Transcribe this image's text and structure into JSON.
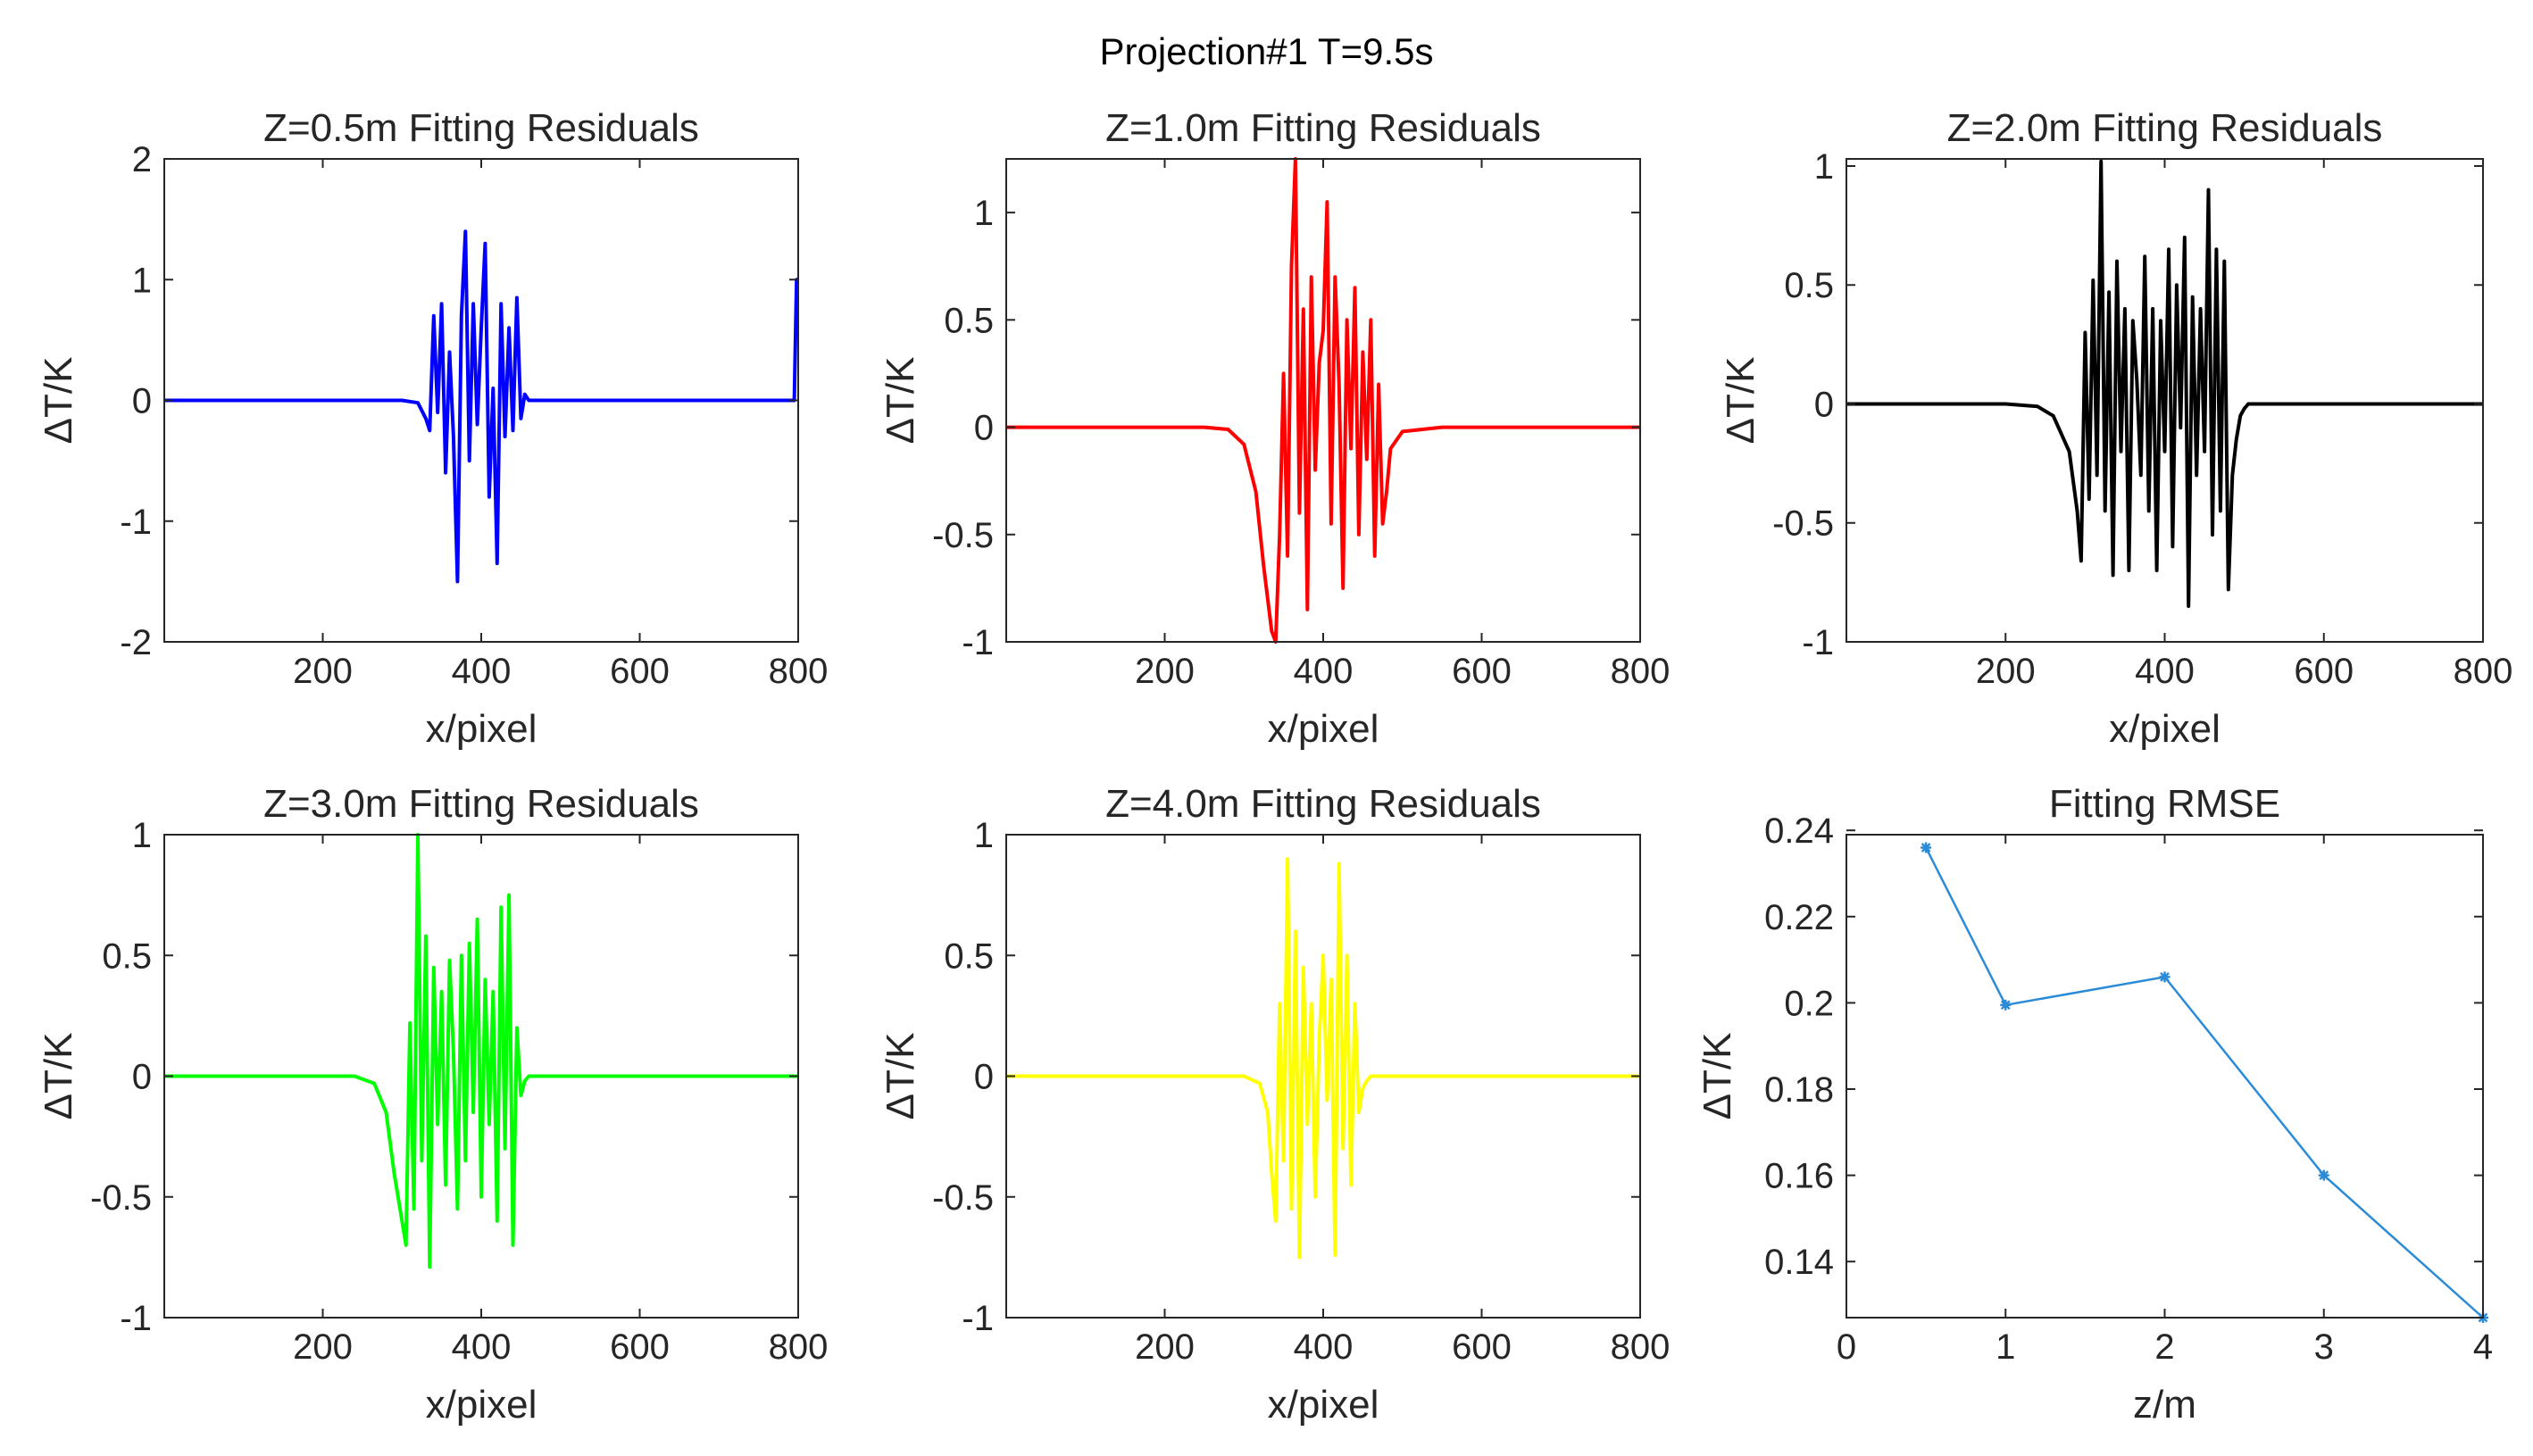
{
  "figure_title": "Projection#1 T=9.5s",
  "chart_data": [
    {
      "type": "line",
      "title": "Z=0.5m Fitting Residuals",
      "xlabel": "x/pixel",
      "ylabel": "ΔT/K",
      "xlim": [
        0,
        800
      ],
      "ylim": [
        -2,
        2
      ],
      "xticks": [
        200,
        400,
        600,
        800
      ],
      "xtick_labels": [
        "200",
        "400",
        "600",
        "800"
      ],
      "yticks": [
        -2,
        -1,
        0,
        1,
        2
      ],
      "ytick_labels": [
        "-2",
        "-1",
        "0",
        "1",
        "2"
      ],
      "color": "#0000ff",
      "series": [
        {
          "name": "Z=0.5m",
          "x": [
            0,
            300,
            320,
            330,
            335,
            340,
            345,
            350,
            355,
            360,
            365,
            370,
            375,
            380,
            385,
            390,
            395,
            400,
            405,
            410,
            415,
            420,
            425,
            430,
            435,
            440,
            445,
            450,
            455,
            460,
            470,
            500,
            600,
            700,
            795,
            798,
            800
          ],
          "y": [
            0,
            0,
            -0.02,
            -0.15,
            -0.25,
            0.7,
            -0.1,
            0.8,
            -0.6,
            0.4,
            -0.3,
            -1.5,
            0.7,
            1.4,
            -0.5,
            0.8,
            -0.2,
            0.6,
            1.3,
            -0.8,
            0.1,
            -1.35,
            0.8,
            -0.3,
            0.6,
            -0.25,
            0.85,
            -0.15,
            0.05,
            0,
            0,
            0,
            0,
            0,
            0,
            1.0,
            1.0
          ]
        }
      ]
    },
    {
      "type": "line",
      "title": "Z=1.0m Fitting Residuals",
      "xlabel": "x/pixel",
      "ylabel": "ΔT/K",
      "xlim": [
        0,
        800
      ],
      "ylim": [
        -1,
        1.25
      ],
      "xticks": [
        200,
        400,
        600,
        800
      ],
      "xtick_labels": [
        "200",
        "400",
        "600",
        "800"
      ],
      "yticks": [
        -1,
        -0.5,
        0,
        0.5,
        1
      ],
      "ytick_labels": [
        "-1",
        "-0.5",
        "0",
        "0.5",
        "1"
      ],
      "color": "#ff0000",
      "series": [
        {
          "name": "Z=1.0m",
          "x": [
            0,
            250,
            280,
            300,
            315,
            325,
            335,
            340,
            345,
            350,
            355,
            360,
            365,
            370,
            375,
            380,
            385,
            390,
            395,
            400,
            405,
            410,
            415,
            420,
            425,
            430,
            435,
            440,
            445,
            450,
            455,
            460,
            465,
            470,
            475,
            480,
            485,
            500,
            550,
            600,
            800
          ],
          "y": [
            0,
            0,
            -0.01,
            -0.08,
            -0.3,
            -0.65,
            -0.95,
            -1.0,
            -0.5,
            0.25,
            -0.6,
            0.75,
            1.25,
            -0.4,
            0.55,
            -0.85,
            0.7,
            -0.2,
            0.3,
            0.45,
            1.05,
            -0.45,
            0.7,
            0.2,
            -0.75,
            0.5,
            -0.1,
            0.65,
            -0.5,
            0.35,
            -0.15,
            0.5,
            -0.6,
            0.2,
            -0.45,
            -0.3,
            -0.1,
            -0.02,
            0,
            0,
            0
          ]
        }
      ]
    },
    {
      "type": "line",
      "title": "Z=2.0m Fitting Residuals",
      "xlabel": "x/pixel",
      "ylabel": "ΔT/K",
      "xlim": [
        0,
        800
      ],
      "ylim": [
        -1,
        1.03
      ],
      "xticks": [
        200,
        400,
        600,
        800
      ],
      "xtick_labels": [
        "200",
        "400",
        "600",
        "800"
      ],
      "yticks": [
        -1,
        -0.5,
        0,
        0.5,
        1
      ],
      "ytick_labels": [
        "-1",
        "-0.5",
        "0",
        "0.5",
        "1"
      ],
      "color": "#000000",
      "series": [
        {
          "name": "Z=2.0m",
          "x": [
            0,
            200,
            240,
            260,
            280,
            290,
            295,
            300,
            305,
            310,
            315,
            320,
            325,
            330,
            335,
            340,
            345,
            350,
            355,
            360,
            365,
            370,
            375,
            380,
            385,
            390,
            395,
            400,
            405,
            410,
            415,
            420,
            425,
            430,
            435,
            440,
            445,
            450,
            455,
            460,
            465,
            470,
            475,
            480,
            485,
            490,
            495,
            500,
            505,
            510,
            520,
            540,
            560,
            600,
            800
          ],
          "y": [
            0,
            0,
            -0.01,
            -0.05,
            -0.2,
            -0.45,
            -0.66,
            0.3,
            -0.4,
            0.52,
            -0.3,
            1.02,
            -0.45,
            0.47,
            -0.72,
            0.6,
            -0.2,
            0.4,
            -0.7,
            0.35,
            0.1,
            -0.3,
            0.62,
            -0.45,
            0.4,
            -0.7,
            0.35,
            -0.2,
            0.65,
            -0.6,
            0.5,
            -0.1,
            0.7,
            -0.85,
            0.45,
            -0.3,
            0.4,
            -0.2,
            0.9,
            -0.55,
            0.65,
            -0.45,
            0.6,
            -0.78,
            -0.3,
            -0.15,
            -0.05,
            -0.02,
            0,
            0,
            0,
            0,
            0,
            0,
            0
          ]
        }
      ]
    },
    {
      "type": "line",
      "title": "Z=3.0m Fitting Residuals",
      "xlabel": "x/pixel",
      "ylabel": "ΔT/K",
      "xlim": [
        0,
        800
      ],
      "ylim": [
        -1,
        1
      ],
      "xticks": [
        200,
        400,
        600,
        800
      ],
      "xtick_labels": [
        "200",
        "400",
        "600",
        "800"
      ],
      "yticks": [
        -1,
        -0.5,
        0,
        0.5,
        1
      ],
      "ytick_labels": [
        "-1",
        "-0.5",
        "0",
        "0.5",
        "1"
      ],
      "color": "#00ff00",
      "series": [
        {
          "name": "Z=3.0m",
          "x": [
            0,
            240,
            265,
            280,
            290,
            300,
            305,
            310,
            315,
            320,
            325,
            330,
            335,
            340,
            345,
            350,
            355,
            360,
            365,
            370,
            375,
            380,
            385,
            390,
            395,
            400,
            405,
            410,
            415,
            420,
            425,
            430,
            435,
            440,
            445,
            450,
            455,
            460,
            470,
            480,
            500,
            800
          ],
          "y": [
            0,
            0,
            -0.03,
            -0.15,
            -0.4,
            -0.6,
            -0.7,
            0.22,
            -0.55,
            1.0,
            -0.35,
            0.58,
            -0.79,
            0.45,
            -0.2,
            0.35,
            -0.45,
            0.48,
            0.1,
            -0.55,
            0.5,
            -0.35,
            0.55,
            -0.15,
            0.65,
            -0.5,
            0.4,
            -0.2,
            0.35,
            -0.6,
            0.7,
            -0.3,
            0.75,
            -0.7,
            0.2,
            -0.08,
            -0.02,
            0,
            0,
            0,
            0,
            0
          ]
        }
      ]
    },
    {
      "type": "line",
      "title": "Z=4.0m Fitting Residuals",
      "xlabel": "x/pixel",
      "ylabel": "ΔT/K",
      "xlim": [
        0,
        800
      ],
      "ylim": [
        -1,
        1
      ],
      "xticks": [
        200,
        400,
        600,
        800
      ],
      "xtick_labels": [
        "200",
        "400",
        "600",
        "800"
      ],
      "yticks": [
        -1,
        -0.5,
        0,
        0.5,
        1
      ],
      "ytick_labels": [
        "-1",
        "-0.5",
        "0",
        "0.5",
        "1"
      ],
      "color": "#ffff00",
      "series": [
        {
          "name": "Z=4.0m",
          "x": [
            0,
            300,
            320,
            330,
            335,
            340,
            345,
            350,
            355,
            360,
            365,
            370,
            375,
            380,
            385,
            390,
            395,
            400,
            405,
            410,
            415,
            420,
            425,
            430,
            435,
            440,
            445,
            450,
            455,
            460,
            470,
            800
          ],
          "y": [
            0,
            0,
            -0.03,
            -0.15,
            -0.4,
            -0.6,
            0.3,
            -0.35,
            0.9,
            -0.55,
            0.6,
            -0.75,
            0.45,
            -0.2,
            0.3,
            -0.5,
            0.15,
            0.5,
            -0.1,
            0.4,
            -0.74,
            0.88,
            -0.3,
            0.5,
            -0.45,
            0.3,
            -0.15,
            -0.05,
            -0.02,
            0,
            0,
            0
          ]
        }
      ]
    },
    {
      "type": "line",
      "title": "Fitting RMSE",
      "xlabel": "z/m",
      "ylabel": "ΔT/K",
      "xlim": [
        0,
        4
      ],
      "ylim": [
        0.127,
        0.239
      ],
      "xticks": [
        0,
        1,
        2,
        3,
        4
      ],
      "xtick_labels": [
        "0",
        "1",
        "2",
        "3",
        "4"
      ],
      "yticks": [
        0.14,
        0.16,
        0.18,
        0.2,
        0.22,
        0.24
      ],
      "ytick_labels": [
        "0.14",
        "0.16",
        "0.18",
        "0.2",
        "0.22",
        "0.24"
      ],
      "color": "#2b8bd6",
      "markers": true,
      "series": [
        {
          "name": "RMSE",
          "x": [
            0.5,
            1,
            2,
            3,
            4
          ],
          "y": [
            0.236,
            0.1995,
            0.206,
            0.16,
            0.127
          ]
        }
      ]
    }
  ]
}
